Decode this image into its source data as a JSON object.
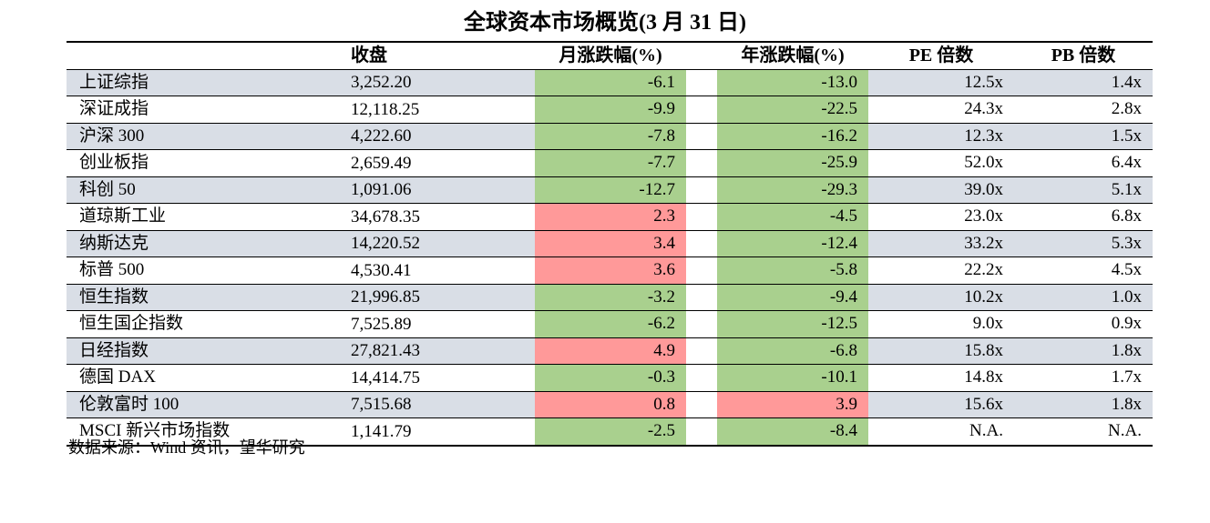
{
  "title": "全球资本市场概览(3 月 31 日)",
  "columns": {
    "name": "",
    "close": "收盘",
    "month_chg": "月涨跌幅(%)",
    "year_chg": "年涨跌幅(%)",
    "pe": "PE 倍数",
    "pb": "PB 倍数"
  },
  "rows": [
    {
      "name": "上证综指",
      "close": "3,252.20",
      "month": "-6.1",
      "year": "-13.0",
      "pe": "12.5x",
      "pb": "1.4x"
    },
    {
      "name": "深证成指",
      "close": "12,118.25",
      "month": "-9.9",
      "year": "-22.5",
      "pe": "24.3x",
      "pb": "2.8x"
    },
    {
      "name": "沪深 300",
      "close": "4,222.60",
      "month": "-7.8",
      "year": "-16.2",
      "pe": "12.3x",
      "pb": "1.5x"
    },
    {
      "name": "创业板指",
      "close": "2,659.49",
      "month": "-7.7",
      "year": "-25.9",
      "pe": "52.0x",
      "pb": "6.4x"
    },
    {
      "name": "科创 50",
      "close": "1,091.06",
      "month": "-12.7",
      "year": "-29.3",
      "pe": "39.0x",
      "pb": "5.1x"
    },
    {
      "name": "道琼斯工业",
      "close": "34,678.35",
      "month": "2.3",
      "year": "-4.5",
      "pe": "23.0x",
      "pb": "6.8x"
    },
    {
      "name": "纳斯达克",
      "close": "14,220.52",
      "month": "3.4",
      "year": "-12.4",
      "pe": "33.2x",
      "pb": "5.3x"
    },
    {
      "name": "标普 500",
      "close": "4,530.41",
      "month": "3.6",
      "year": "-5.8",
      "pe": "22.2x",
      "pb": "4.5x"
    },
    {
      "name": "恒生指数",
      "close": "21,996.85",
      "month": "-3.2",
      "year": "-9.4",
      "pe": "10.2x",
      "pb": "1.0x"
    },
    {
      "name": "恒生国企指数",
      "close": "7,525.89",
      "month": "-6.2",
      "year": "-12.5",
      "pe": "9.0x",
      "pb": "0.9x"
    },
    {
      "name": "日经指数",
      "close": "27,821.43",
      "month": "4.9",
      "year": "-6.8",
      "pe": "15.8x",
      "pb": "1.8x"
    },
    {
      "name": "德国 DAX",
      "close": "14,414.75",
      "month": "-0.3",
      "year": "-10.1",
      "pe": "14.8x",
      "pb": "1.7x"
    },
    {
      "name": "伦敦富时 100",
      "close": "7,515.68",
      "month": "0.8",
      "year": "3.9",
      "pe": "15.6x",
      "pb": "1.8x"
    },
    {
      "name": "MSCI 新兴市场指数",
      "close": "1,141.79",
      "month": "-2.5",
      "year": "-8.4",
      "pe": "N.A.",
      "pb": "N.A."
    }
  ],
  "source": "数据来源：Wind 资讯，望华研究",
  "colors": {
    "negative": "#a9d08e",
    "positive": "#ff9999",
    "row_shade": "#d9dee6"
  }
}
